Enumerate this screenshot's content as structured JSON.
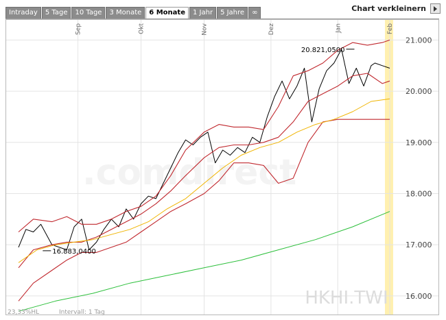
{
  "tabs": [
    "Intraday",
    "5 Tage",
    "10 Tage",
    "3 Monate",
    "6 Monate",
    "1 Jahr",
    "5 Jahre",
    "∞"
  ],
  "active_tab": "6 Monate",
  "shrink_label": "Chart verkleinern",
  "shrink_icon": "play-arrow-icon",
  "watermark": ".comdirect",
  "symbol": "HKHI.TWI",
  "footer_left": "23,33%HL",
  "footer_interval": "Intervall: 1 Tag",
  "colors": {
    "price": "#000000",
    "bollinger": "#c0272d",
    "ma_short": "#f0b400",
    "ma_long": "#2bbf3a",
    "highlight": "#fff0b0"
  },
  "chart_data": {
    "type": "line",
    "title": "",
    "xlabel": "",
    "ylabel": "",
    "x_ticks": [
      "Sep",
      "Okt",
      "Nov",
      "Dez",
      "Jan",
      "Feb"
    ],
    "y_ticks": [
      "16.000",
      "17.000",
      "18.000",
      "19.000",
      "20.000",
      "21.000"
    ],
    "ylim": [
      15650,
      21300
    ],
    "grid": true,
    "annotations": [
      {
        "text": "16.883,0400",
        "x": 0.08,
        "y": 16883
      },
      {
        "text": "20.821,0500",
        "x": 0.89,
        "y": 20821
      }
    ],
    "series": [
      {
        "key": "price",
        "x": [
          0.0,
          0.02,
          0.04,
          0.06,
          0.09,
          0.11,
          0.13,
          0.15,
          0.17,
          0.19,
          0.21,
          0.23,
          0.25,
          0.27,
          0.29,
          0.31,
          0.33,
          0.35,
          0.37,
          0.39,
          0.41,
          0.43,
          0.45,
          0.47,
          0.49,
          0.51,
          0.53,
          0.55,
          0.57,
          0.59,
          0.61,
          0.63,
          0.65,
          0.67,
          0.69,
          0.71,
          0.73,
          0.75,
          0.77,
          0.79,
          0.81,
          0.83,
          0.85,
          0.87,
          0.89,
          0.91,
          0.93,
          0.95,
          0.96,
          0.98,
          1.0
        ],
        "values": [
          16950,
          17300,
          17250,
          17400,
          17000,
          16950,
          16900,
          17350,
          17500,
          16900,
          17050,
          17300,
          17500,
          17350,
          17700,
          17500,
          17800,
          17950,
          17900,
          18200,
          18500,
          18800,
          19050,
          18950,
          19100,
          19200,
          18600,
          18850,
          18750,
          18900,
          18800,
          19100,
          19000,
          19500,
          19900,
          20200,
          19850,
          20100,
          20450,
          19400,
          20050,
          20400,
          20550,
          20820,
          20150,
          20450,
          20100,
          20500,
          20550,
          20500,
          20450
        ]
      },
      {
        "key": "bollinger",
        "x": [
          0.0,
          0.04,
          0.09,
          0.13,
          0.17,
          0.21,
          0.25,
          0.29,
          0.33,
          0.37,
          0.41,
          0.45,
          0.5,
          0.54,
          0.58,
          0.62,
          0.66,
          0.7,
          0.74,
          0.78,
          0.82,
          0.86,
          0.9,
          0.94,
          0.98,
          1.0
        ],
        "values": [
          17250,
          17500,
          17450,
          17550,
          17400,
          17400,
          17500,
          17650,
          17750,
          17950,
          18350,
          18850,
          19200,
          19350,
          19300,
          19300,
          19250,
          19700,
          20300,
          20400,
          20550,
          20800,
          20950,
          20900,
          20950,
          21000
        ]
      },
      {
        "key": "bollinger",
        "x": [
          0.0,
          0.04,
          0.09,
          0.13,
          0.17,
          0.21,
          0.25,
          0.29,
          0.33,
          0.37,
          0.41,
          0.45,
          0.5,
          0.54,
          0.58,
          0.62,
          0.66,
          0.7,
          0.74,
          0.78,
          0.82,
          0.86,
          0.9,
          0.94,
          0.98,
          1.0
        ],
        "values": [
          16550,
          16900,
          17000,
          17050,
          17050,
          17150,
          17300,
          17450,
          17600,
          17800,
          18050,
          18350,
          18700,
          18900,
          18950,
          18950,
          19000,
          19100,
          19400,
          19800,
          19950,
          20100,
          20300,
          20350,
          20150,
          20200
        ]
      },
      {
        "key": "bollinger",
        "x": [
          0.0,
          0.04,
          0.09,
          0.13,
          0.17,
          0.21,
          0.25,
          0.29,
          0.33,
          0.37,
          0.41,
          0.45,
          0.5,
          0.54,
          0.58,
          0.62,
          0.66,
          0.7,
          0.74,
          0.78,
          0.82,
          0.86,
          0.9,
          0.94,
          0.98,
          1.0
        ],
        "values": [
          15900,
          16250,
          16500,
          16700,
          16850,
          16850,
          16950,
          17050,
          17250,
          17450,
          17650,
          17800,
          18000,
          18250,
          18600,
          18600,
          18550,
          18200,
          18300,
          19000,
          19400,
          19450,
          19450,
          19450,
          19450,
          19450
        ]
      },
      {
        "key": "ma_short",
        "x": [
          0.0,
          0.05,
          0.1,
          0.15,
          0.2,
          0.25,
          0.3,
          0.35,
          0.4,
          0.45,
          0.5,
          0.55,
          0.6,
          0.65,
          0.7,
          0.75,
          0.8,
          0.85,
          0.9,
          0.95,
          1.0
        ],
        "values": [
          16650,
          16900,
          17000,
          17050,
          17100,
          17200,
          17300,
          17450,
          17700,
          17900,
          18200,
          18500,
          18750,
          18900,
          19000,
          19200,
          19350,
          19450,
          19600,
          19800,
          19850
        ]
      },
      {
        "key": "ma_long",
        "x": [
          0.0,
          0.1,
          0.2,
          0.3,
          0.4,
          0.5,
          0.6,
          0.7,
          0.8,
          0.9,
          1.0
        ],
        "values": [
          15700,
          15900,
          16050,
          16250,
          16400,
          16550,
          16700,
          16900,
          17100,
          17350,
          17650
        ]
      }
    ]
  }
}
